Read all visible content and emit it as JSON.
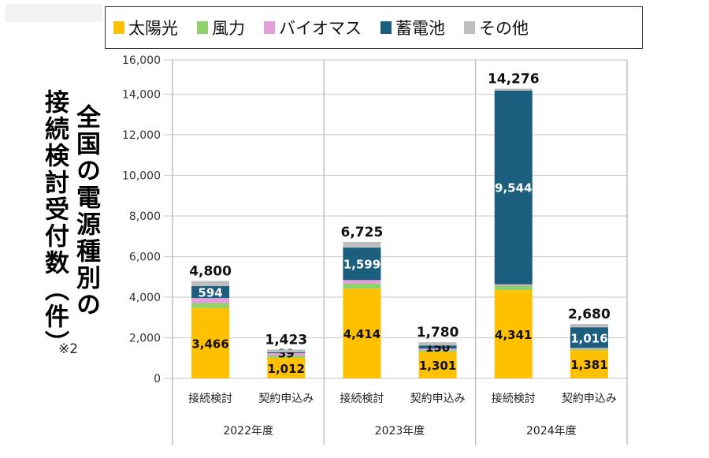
{
  "legend": {
    "items": [
      {
        "label": "太陽光",
        "color": "#FFC000"
      },
      {
        "label": "風力",
        "color": "#8FD16A"
      },
      {
        "label": "バイオマス",
        "color": "#E59FD8"
      },
      {
        "label": "蓄電池",
        "color": "#1B5E7E"
      },
      {
        "label": "その他",
        "color": "#BEBEBE"
      }
    ]
  },
  "title": {
    "line1": "全国の電源種別の",
    "line2": "接続検討受付数（件）",
    "note": "※2"
  },
  "chart_data": {
    "type": "bar",
    "stacked": true,
    "title": "全国の電源種別の接続検討受付数(件)",
    "xlabel": "",
    "ylabel": "接続検討受付数(件)",
    "ylim": [
      0,
      16000
    ],
    "yticks": [
      0,
      2000,
      4000,
      6000,
      8000,
      10000,
      12000,
      14000,
      16000
    ],
    "ytick_labels": [
      "0",
      "2,000",
      "4,000",
      "6,000",
      "8,000",
      "10,000",
      "12,000",
      "14,000",
      "16,000"
    ],
    "grid": true,
    "legend_position": "top",
    "groups": [
      {
        "label": "2022年度",
        "categories": [
          "接続検討",
          "契約申込み"
        ]
      },
      {
        "label": "2023年度",
        "categories": [
          "接続検討",
          "契約申込み"
        ]
      },
      {
        "label": "2024年度",
        "categories": [
          "接続検討",
          "契約申込み"
        ]
      }
    ],
    "categories": [
      "2022年度 接続検討",
      "2022年度 契約申込み",
      "2023年度 接続検討",
      "2023年度 契約申込み",
      "2024年度 接続検討",
      "2024年度 契約申込み"
    ],
    "series": [
      {
        "name": "太陽光",
        "color": "#FFC000",
        "values": [
          3466,
          1012,
          4414,
          1301,
          4341,
          1381
        ],
        "labels": [
          "3,466",
          "1,012",
          "4,414",
          "1,301",
          "4,341",
          "1,381"
        ]
      },
      {
        "name": "風力",
        "color": "#8FD16A",
        "values": [
          240,
          110,
          250,
          90,
          235,
          70
        ],
        "labels": null
      },
      {
        "name": "バイオマス",
        "color": "#E59FD8",
        "values": [
          250,
          122,
          180,
          80,
          60,
          50
        ],
        "labels": null
      },
      {
        "name": "蓄電池",
        "color": "#1B5E7E",
        "values": [
          594,
          39,
          1599,
          150,
          9544,
          1016
        ],
        "labels": [
          "594",
          "39",
          "1,599",
          "150",
          "9,544",
          "1,016"
        ]
      },
      {
        "name": "その他",
        "color": "#BEBEBE",
        "values": [
          250,
          140,
          282,
          159,
          96,
          163
        ],
        "labels": null
      }
    ],
    "totals": [
      4800,
      1423,
      6725,
      1780,
      14276,
      2680
    ],
    "total_labels": [
      "4,800",
      "1,423",
      "6,725",
      "1,780",
      "14,276",
      "2,680"
    ]
  }
}
